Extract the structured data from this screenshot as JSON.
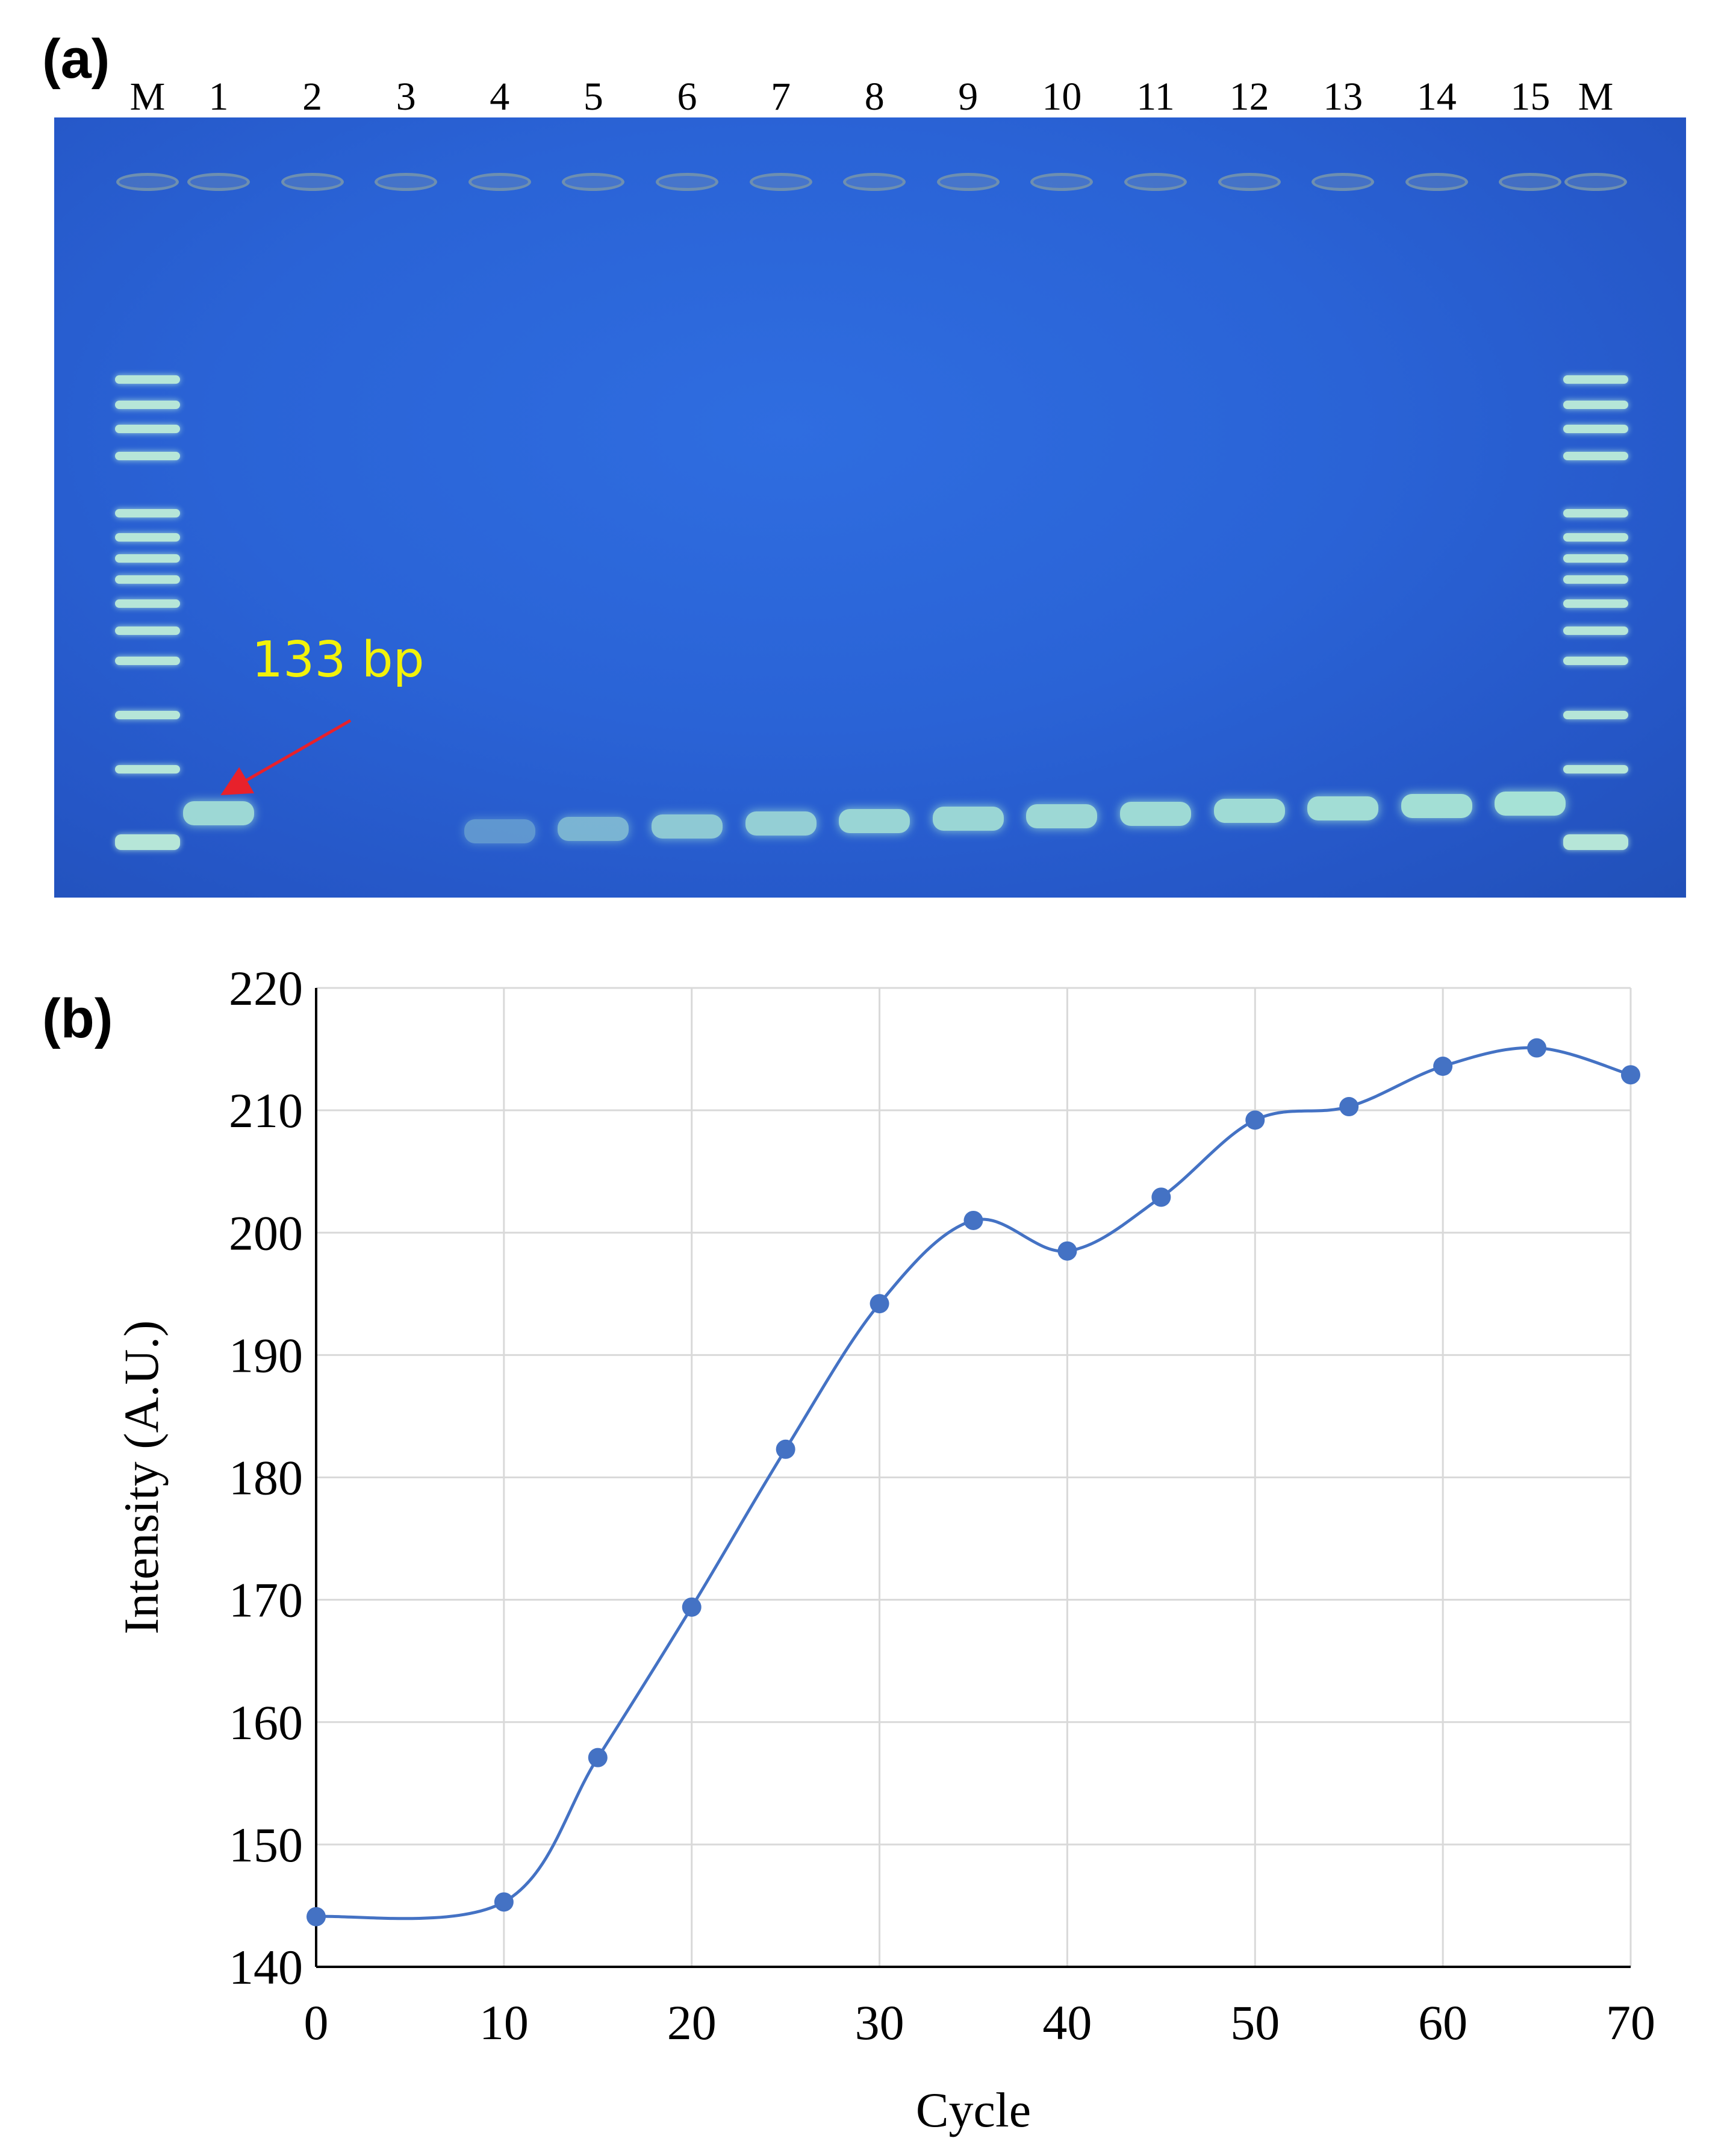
{
  "panel_a": {
    "label": "(a)",
    "lanes": [
      "M",
      "1",
      "2",
      "3",
      "4",
      "5",
      "6",
      "7",
      "8",
      "9",
      "10",
      "11",
      "12",
      "13",
      "14",
      "15",
      "M"
    ],
    "annotation": "133 bp",
    "annotation_color": "#f2f20a",
    "arrow_color": "#e8212b",
    "gel_color": "#2a63d6",
    "band_color": "#a6e2d6",
    "ladder_band_count": 13,
    "band_intensity": [
      0.9,
      0,
      0,
      0.25,
      0.55,
      0.75,
      0.82,
      0.86,
      0.88,
      0.9,
      0.92,
      0.94,
      0.96,
      0.98,
      1.0
    ]
  },
  "panel_b": {
    "label": "(b)"
  },
  "chart_data": {
    "type": "line",
    "title": "",
    "xlabel": "Cycle",
    "ylabel": "Intensity (A.U.)",
    "xlim": [
      0,
      70
    ],
    "ylim": [
      140,
      220
    ],
    "xticks": [
      0,
      10,
      20,
      30,
      40,
      50,
      60,
      70
    ],
    "yticks": [
      140,
      150,
      160,
      170,
      180,
      190,
      200,
      210,
      220
    ],
    "grid": true,
    "smooth": true,
    "color": "#4472c4",
    "series": [
      {
        "x": [
          0,
          10,
          15,
          20,
          25,
          30,
          35,
          40,
          45,
          50,
          55,
          60,
          65,
          70
        ],
        "y": [
          144.1,
          145.3,
          157.1,
          169.4,
          182.3,
          194.2,
          201.0,
          198.5,
          202.9,
          209.2,
          210.3,
          213.6,
          215.1,
          212.9
        ]
      }
    ]
  }
}
